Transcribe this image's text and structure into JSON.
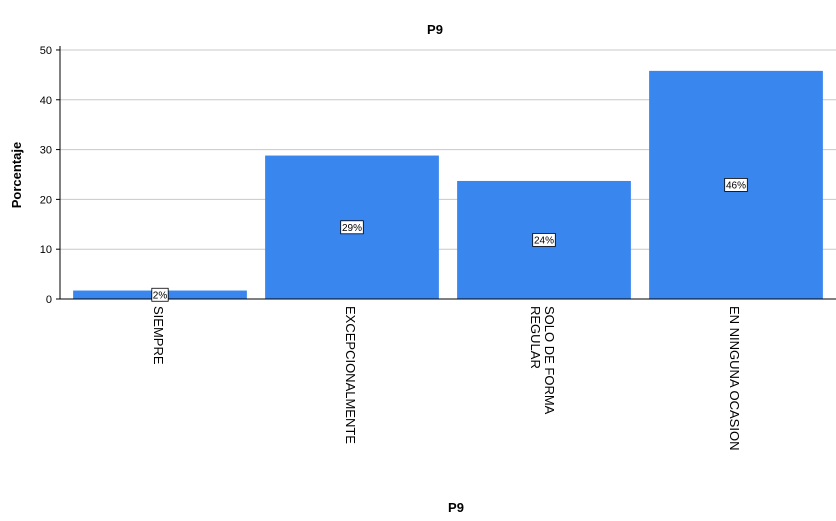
{
  "chart_data": {
    "type": "bar",
    "title": "P9",
    "xlabel": "P9",
    "ylabel": "Porcentaje",
    "categories": [
      [
        "SIEMPRE"
      ],
      [
        "EXCEPCIONALMENTE"
      ],
      [
        "SOLO DE FORMA",
        "REGULAR"
      ],
      [
        "EN NINGUNA OCASION"
      ]
    ],
    "values": [
      1.7,
      28.8,
      23.7,
      45.8
    ],
    "data_labels": [
      "2%",
      "29%",
      "24%",
      "46%"
    ],
    "ylim": [
      0,
      52
    ],
    "yticks": [
      0,
      10,
      20,
      30,
      40,
      50
    ],
    "grid": true,
    "bar_color": "#3a86ef",
    "grid_color": "#c8c8c8"
  }
}
